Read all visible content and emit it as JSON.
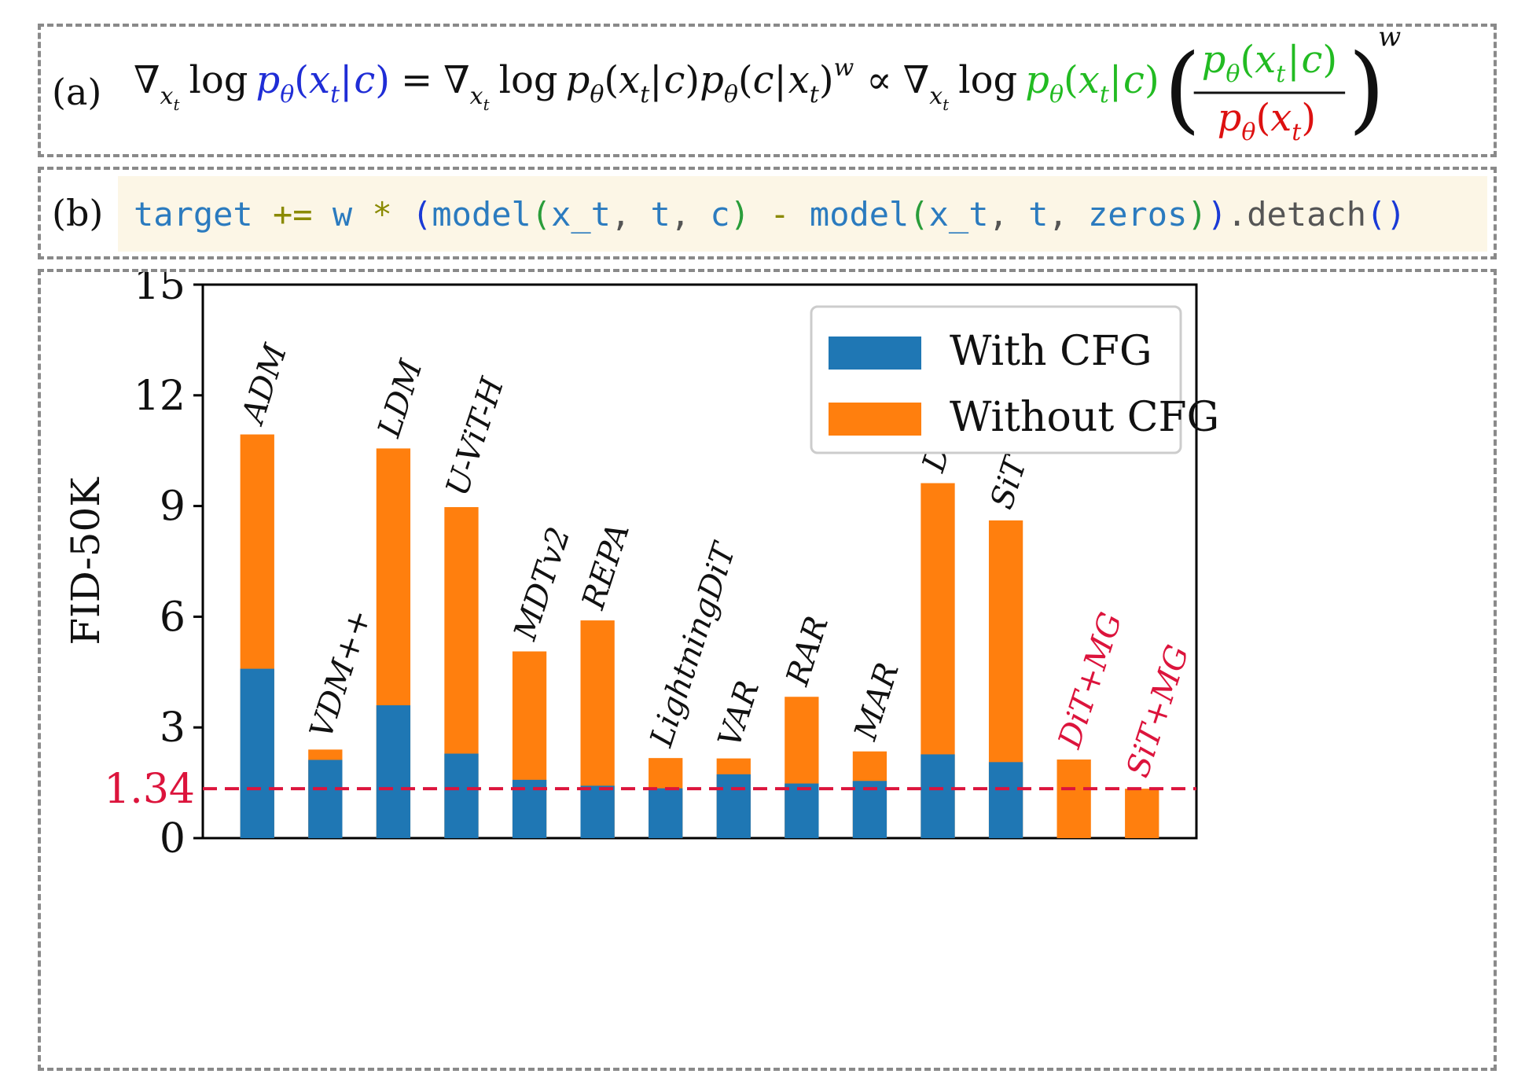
{
  "formula": {
    "label": "(a)",
    "grad_x_t": "∇",
    "log": "log",
    "eq": "=",
    "propto": "∝",
    "exponent": "w",
    "colors": {
      "blue": "#1f2dd6",
      "green": "#22bb22",
      "red": "#dd1111",
      "black": "#111111"
    }
  },
  "code": {
    "label": "(b)",
    "tokens": [
      {
        "t": "target",
        "c": "#2b7bbf"
      },
      {
        "t": " ",
        "c": "#000"
      },
      {
        "t": "+=",
        "c": "#8a8a00"
      },
      {
        "t": " ",
        "c": "#000"
      },
      {
        "t": "w",
        "c": "#2b7bbf"
      },
      {
        "t": " ",
        "c": "#000"
      },
      {
        "t": "*",
        "c": "#8a8a00"
      },
      {
        "t": " ",
        "c": "#000"
      },
      {
        "t": "(",
        "c": "#1a3ad6"
      },
      {
        "t": "model",
        "c": "#2b7bbf"
      },
      {
        "t": "(",
        "c": "#2a9d3a"
      },
      {
        "t": "x_t",
        "c": "#2b7bbf"
      },
      {
        "t": ", ",
        "c": "#555"
      },
      {
        "t": "t",
        "c": "#2b7bbf"
      },
      {
        "t": ", ",
        "c": "#555"
      },
      {
        "t": "c",
        "c": "#2b7bbf"
      },
      {
        "t": ")",
        "c": "#2a9d3a"
      },
      {
        "t": " ",
        "c": "#000"
      },
      {
        "t": "-",
        "c": "#8a8a00"
      },
      {
        "t": " ",
        "c": "#000"
      },
      {
        "t": "model",
        "c": "#2b7bbf"
      },
      {
        "t": "(",
        "c": "#2a9d3a"
      },
      {
        "t": "x_t",
        "c": "#2b7bbf"
      },
      {
        "t": ", ",
        "c": "#555"
      },
      {
        "t": "t",
        "c": "#2b7bbf"
      },
      {
        "t": ", ",
        "c": "#555"
      },
      {
        "t": "zeros",
        "c": "#2b7bbf"
      },
      {
        "t": ")",
        "c": "#2a9d3a"
      },
      {
        "t": ")",
        "c": "#1a3ad6"
      },
      {
        "t": ".detach",
        "c": "#555"
      },
      {
        "t": "()",
        "c": "#1a3ad6"
      }
    ]
  },
  "chart_data": {
    "type": "bar",
    "stacked": true,
    "title": "",
    "xlabel": "",
    "ylabel": "FID-50K",
    "ylim": [
      0,
      15
    ],
    "yticks": [
      0,
      3,
      6,
      9,
      12,
      15
    ],
    "reference_line": {
      "value": 1.34,
      "label": "1.34",
      "style": "dashed",
      "color": "#dc143c"
    },
    "categories": [
      "ADM",
      "VDM++",
      "LDM",
      "U-ViT-H",
      "MDTv2",
      "REPA",
      "LightningDiT",
      "VAR",
      "RAR",
      "MAR",
      "DiT",
      "SiT",
      "DiT+MG",
      "SiT+MG"
    ],
    "highlight_categories": [
      "DiT+MG",
      "SiT+MG"
    ],
    "series": [
      {
        "name": "With CFG",
        "color": "#1f77b4",
        "values": [
          4.59,
          2.12,
          3.6,
          2.29,
          1.58,
          1.42,
          1.35,
          1.73,
          1.48,
          1.55,
          2.27,
          2.06,
          null,
          null
        ]
      },
      {
        "name": "Without CFG",
        "color": "#ff7f0e",
        "values": [
          10.94,
          2.4,
          10.56,
          8.97,
          5.06,
          5.9,
          2.17,
          2.16,
          3.83,
          2.35,
          9.62,
          8.61,
          2.13,
          1.34
        ]
      }
    ],
    "legend": {
      "position": "top-right"
    },
    "grid": false
  }
}
